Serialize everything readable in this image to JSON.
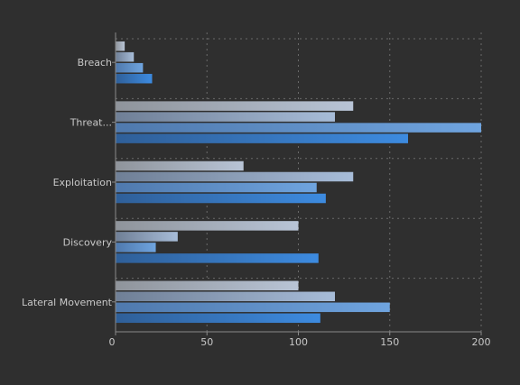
{
  "chart_data": {
    "type": "bar",
    "orientation": "horizontal",
    "categories": [
      "Breach",
      "Threat...",
      "Exploitation",
      "Discovery",
      "Lateral Movement"
    ],
    "series": [
      {
        "values": [
          5,
          130,
          70,
          100,
          100
        ],
        "color_from": "#8f949b",
        "color_to": "#b8c4d6"
      },
      {
        "values": [
          10,
          120,
          130,
          34,
          120
        ],
        "color_from": "#6f7f96",
        "color_to": "#a7bcd8"
      },
      {
        "values": [
          15,
          200,
          110,
          22,
          150
        ],
        "color_from": "#4f79ad",
        "color_to": "#6fa4df"
      },
      {
        "values": [
          20,
          160,
          115,
          111,
          112
        ],
        "color_from": "#2f5f98",
        "color_to": "#3d8be0"
      }
    ],
    "xlim": [
      0,
      200
    ],
    "xticks": [
      "0",
      "50",
      "100",
      "150",
      "200"
    ],
    "grid": true,
    "colors": {
      "background": "#2f2f2f",
      "axis": "#8a8a8a",
      "grid": "#6a6a6a",
      "text": "#c8c8c8"
    }
  }
}
